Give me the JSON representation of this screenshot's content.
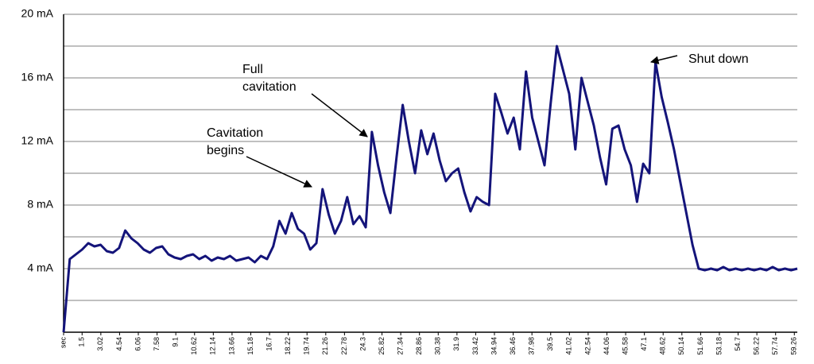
{
  "chart_data": {
    "type": "line",
    "x": [
      0,
      0.5,
      1,
      1.5,
      2,
      2.5,
      3,
      3.5,
      4,
      4.5,
      5,
      5.5,
      6,
      6.5,
      7,
      7.5,
      8,
      8.5,
      9,
      9.5,
      10,
      10.5,
      11,
      11.5,
      12,
      12.5,
      13,
      13.5,
      14,
      14.5,
      15,
      15.5,
      16,
      16.5,
      17,
      17.5,
      18,
      18.5,
      19,
      19.5,
      20,
      20.5,
      21,
      21.5,
      22,
      22.5,
      23,
      23.5,
      24,
      24.5,
      25,
      25.5,
      26,
      26.5,
      27,
      27.5,
      28,
      28.5,
      29,
      29.5,
      30,
      30.5,
      31,
      31.5,
      32,
      32.5,
      33,
      33.5,
      34,
      34.5,
      35,
      35.5,
      36,
      36.5,
      37,
      37.5,
      38,
      38.5,
      39,
      39.5,
      40,
      40.5,
      41,
      41.5,
      42,
      42.5,
      43,
      43.5,
      44,
      44.5,
      45,
      45.5,
      46,
      46.5,
      47,
      47.5,
      48,
      48.5,
      49,
      49.5,
      50,
      50.5,
      51,
      51.5,
      52,
      52.5,
      53,
      53.5,
      54,
      54.5,
      55,
      55.5,
      56,
      56.5,
      57,
      57.5,
      58,
      58.5,
      59,
      59.5
    ],
    "values": [
      0,
      4.6,
      4.9,
      5.2,
      5.6,
      5.4,
      5.5,
      5.1,
      5.0,
      5.3,
      6.4,
      5.9,
      5.6,
      5.2,
      5.0,
      5.3,
      5.4,
      4.9,
      4.7,
      4.6,
      4.8,
      4.9,
      4.6,
      4.8,
      4.5,
      4.7,
      4.6,
      4.8,
      4.5,
      4.6,
      4.7,
      4.4,
      4.8,
      4.6,
      5.4,
      7.0,
      6.2,
      7.5,
      6.5,
      6.2,
      5.2,
      5.6,
      9.0,
      7.4,
      6.2,
      7.0,
      8.5,
      6.8,
      7.3,
      6.6,
      12.6,
      10.5,
      8.8,
      7.5,
      11.0,
      14.3,
      12.0,
      10.0,
      12.7,
      11.2,
      12.5,
      10.8,
      9.5,
      10.0,
      10.3,
      8.8,
      7.6,
      8.5,
      8.2,
      8.0,
      15.0,
      13.8,
      12.5,
      13.5,
      11.5,
      16.4,
      13.5,
      12.0,
      10.5,
      14.4,
      18.0,
      16.5,
      15.0,
      11.5,
      16.0,
      14.5,
      13.0,
      11.0,
      9.3,
      12.8,
      13.0,
      11.5,
      10.5,
      8.2,
      10.6,
      10.0,
      17.0,
      14.8,
      13.2,
      11.5,
      9.5,
      7.5,
      5.5,
      4.0,
      3.9,
      4.0,
      3.9,
      4.1,
      3.9,
      4.0,
      3.9,
      4.0,
      3.9,
      4.0,
      3.9,
      4.1,
      3.9,
      4.0,
      3.9,
      4.0
    ],
    "color": "#14147a",
    "xlim": [
      0,
      59.5
    ],
    "xticks": [
      {
        "value": 0,
        "label": "sec"
      },
      1.5,
      3.02,
      4.54,
      6.06,
      7.58,
      9.1,
      10.62,
      12.14,
      13.66,
      15.18,
      16.7,
      18.22,
      19.74,
      21.26,
      22.78,
      24.3,
      25.82,
      27.34,
      28.86,
      30.38,
      31.9,
      33.42,
      34.94,
      36.46,
      37.98,
      39.5,
      41.02,
      42.54,
      44.06,
      45.58,
      47.1,
      48.62,
      50.14,
      51.66,
      53.18,
      54.7,
      56.22,
      57.74,
      59.26
    ],
    "ylim": [
      0,
      20
    ],
    "yticks": [
      {
        "value": 4,
        "label": "4 mA"
      },
      {
        "value": 8,
        "label": "8 mA"
      },
      {
        "value": 12,
        "label": "12 mA"
      },
      {
        "value": 16,
        "label": "16 mA"
      },
      {
        "value": 20,
        "label": "20 mA"
      }
    ],
    "minor_yticks": [
      2,
      6,
      10,
      14,
      18
    ],
    "grid": true,
    "annotations": [
      {
        "lines": [
          "Full",
          "cavitation"
        ]
      },
      {
        "lines": [
          "Cavitation",
          "begins"
        ]
      },
      {
        "lines": [
          "Shut down"
        ]
      }
    ]
  }
}
